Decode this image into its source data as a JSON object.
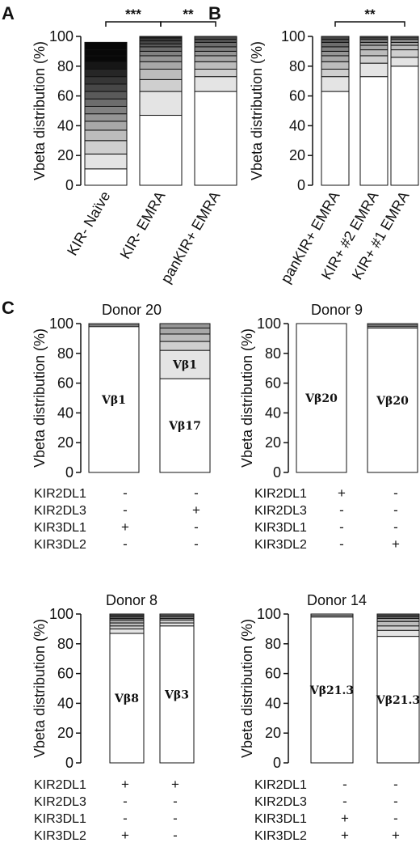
{
  "figure": {
    "panel_letters": [
      "A",
      "B",
      "C"
    ],
    "shade_palette": [
      "#ffffff",
      "#e4e4e4",
      "#cfcfcf",
      "#bcbcbc",
      "#a8a8a8",
      "#959595",
      "#818181",
      "#6d6d6d",
      "#5a5a5a",
      "#474747",
      "#363636",
      "#262626",
      "#161616",
      "#080808"
    ]
  },
  "chart_data": [
    {
      "panel": "A",
      "type": "bar",
      "stacked": true,
      "ylabel": "Vbeta distribution (%)",
      "ylim": [
        0,
        100
      ],
      "yticks": [
        0,
        20,
        40,
        60,
        80,
        100
      ],
      "categories": [
        "KIR- Naïve",
        "KIR- EMRA",
        "panKIR+ EMRA"
      ],
      "stacks": [
        [
          11,
          10,
          9,
          7,
          6,
          5,
          5,
          5,
          5,
          5,
          5,
          5,
          5,
          4,
          4,
          5
        ],
        [
          47,
          16,
          8,
          7,
          5,
          4,
          3,
          3,
          2,
          2,
          2,
          1
        ],
        [
          63,
          10,
          5,
          5,
          4,
          3,
          3,
          3,
          2,
          2
        ]
      ],
      "significance": [
        {
          "from": 0,
          "to": 1,
          "label": "***"
        },
        {
          "from": 1,
          "to": 2,
          "label": "**"
        }
      ]
    },
    {
      "panel": "B",
      "type": "bar",
      "stacked": true,
      "ylabel": "Vbeta distribution (%)",
      "ylim": [
        0,
        100
      ],
      "yticks": [
        0,
        20,
        40,
        60,
        80,
        100
      ],
      "categories": [
        "panKIR+ EMRA",
        "KIR+ #2 EMRA",
        "KIR+ #1 EMRA"
      ],
      "stacks": [
        [
          63,
          10,
          5,
          5,
          4,
          3,
          3,
          3,
          2,
          2
        ],
        [
          73,
          9,
          5,
          4,
          3,
          2,
          2,
          1,
          1
        ],
        [
          80,
          6,
          5,
          3,
          2,
          2,
          1,
          1
        ]
      ],
      "significance": [
        {
          "from": 0,
          "to": 2,
          "label": "**"
        }
      ]
    },
    {
      "panel": "C",
      "title": "Donor 20",
      "type": "bar",
      "stacked": true,
      "ylabel": "Vbeta distribution (%)",
      "ylim": [
        0,
        100
      ],
      "yticks": [
        0,
        20,
        40,
        60,
        80,
        100
      ],
      "stacks": [
        [
          98,
          1,
          1
        ],
        [
          63,
          19,
          6,
          5,
          4,
          3
        ]
      ],
      "bar_labels": [
        "Vβ1",
        "Vβ17"
      ],
      "inner_labels": [
        {
          "bar": 1,
          "seg": 1,
          "text": "Vβ1"
        }
      ],
      "kir_rows": [
        "KIR2DL1",
        "KIR2DL3",
        "KIR3DL1",
        "KIR3DL2"
      ],
      "kir_signs": [
        [
          "-",
          "-"
        ],
        [
          "-",
          "+"
        ],
        [
          "+",
          "-"
        ],
        [
          "-",
          "-"
        ]
      ]
    },
    {
      "panel": "C",
      "title": "Donor 9",
      "type": "bar",
      "stacked": true,
      "ylabel": "Vbeta distribution (%)",
      "ylim": [
        0,
        100
      ],
      "yticks": [
        0,
        20,
        40,
        60,
        80,
        100
      ],
      "stacks": [
        [
          100
        ],
        [
          97,
          1,
          1,
          1
        ]
      ],
      "bar_labels": [
        "Vβ20",
        "Vβ20"
      ],
      "inner_labels": [],
      "kir_rows": [
        "KIR2DL1",
        "KIR2DL3",
        "KIR3DL1",
        "KIR3DL2"
      ],
      "kir_signs": [
        [
          "+",
          "-"
        ],
        [
          "-",
          "-"
        ],
        [
          "-",
          "-"
        ],
        [
          "-",
          "+"
        ]
      ]
    },
    {
      "panel": "C",
      "title": "Donor 8",
      "type": "bar",
      "stacked": true,
      "ylabel": "Vbeta distribution (%)",
      "ylim": [
        0,
        100
      ],
      "yticks": [
        0,
        20,
        40,
        60,
        80,
        100
      ],
      "stacks": [
        [
          87,
          3,
          2,
          2,
          2,
          1,
          1,
          1,
          1
        ],
        [
          92,
          2,
          2,
          1,
          1,
          1,
          1
        ]
      ],
      "bar_labels": [
        "Vβ8",
        "Vβ3"
      ],
      "inner_labels": [],
      "kir_rows": [
        "KIR2DL1",
        "KIR2DL3",
        "KIR3DL1",
        "KIR3DL2"
      ],
      "kir_signs": [
        [
          "+",
          "+"
        ],
        [
          "-",
          "-"
        ],
        [
          "-",
          "-"
        ],
        [
          "+",
          "-"
        ]
      ]
    },
    {
      "panel": "C",
      "title": "Donor 14",
      "type": "bar",
      "stacked": true,
      "ylabel": "Vbeta distribution (%)",
      "ylim": [
        0,
        100
      ],
      "yticks": [
        0,
        20,
        40,
        60,
        80,
        100
      ],
      "stacks": [
        [
          98,
          1,
          1
        ],
        [
          85,
          4,
          3,
          3,
          2,
          1,
          1,
          1
        ]
      ],
      "bar_labels": [
        "Vβ21.3",
        "Vβ21.3"
      ],
      "inner_labels": [],
      "kir_rows": [
        "KIR2DL1",
        "KIR2DL3",
        "KIR3DL1",
        "KIR3DL2"
      ],
      "kir_signs": [
        [
          "-",
          "-"
        ],
        [
          "-",
          "-"
        ],
        [
          "+",
          "-"
        ],
        [
          "+",
          "+"
        ]
      ]
    }
  ]
}
